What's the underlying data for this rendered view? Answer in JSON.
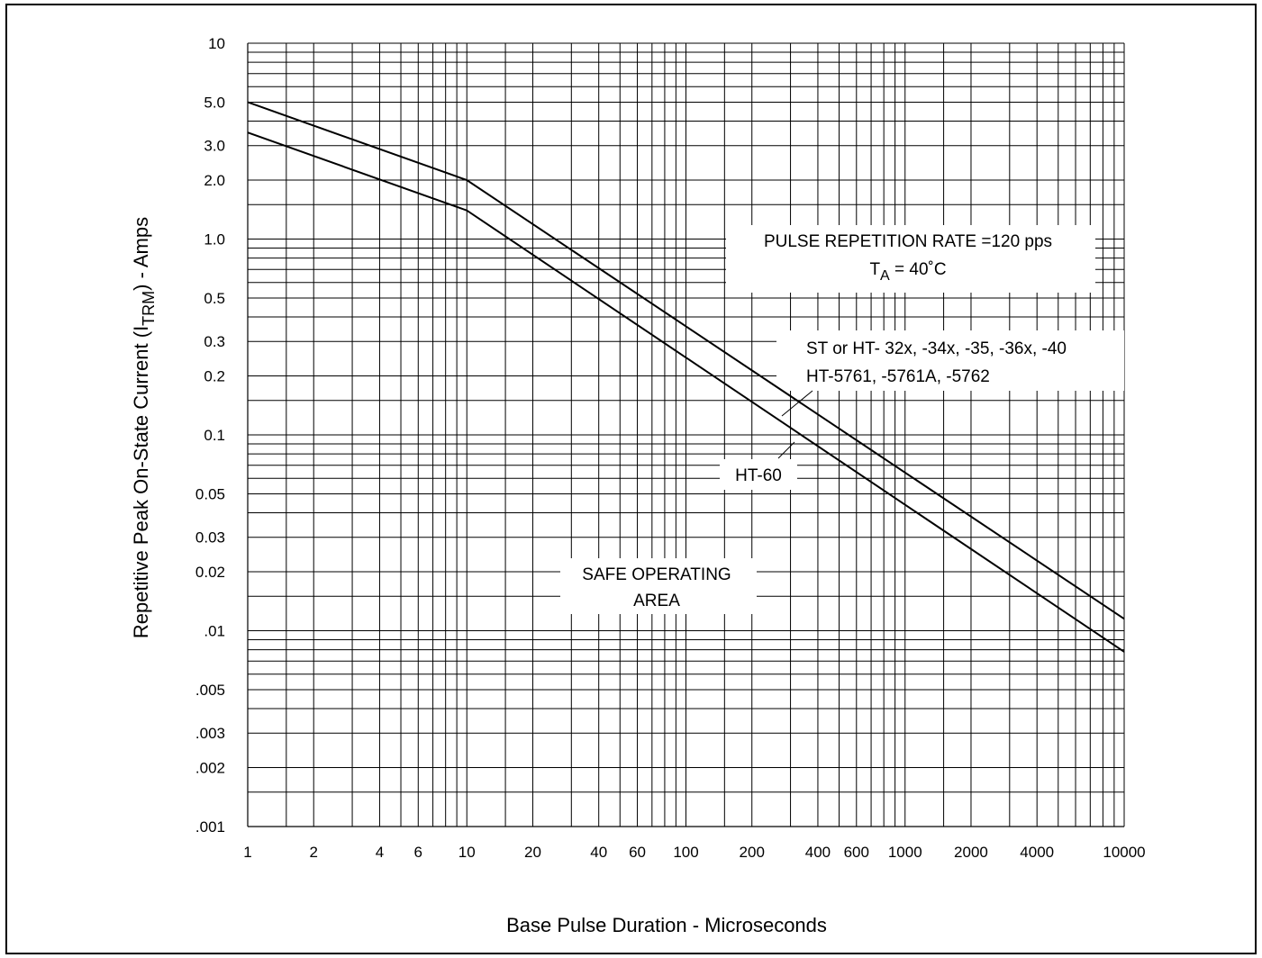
{
  "chart_data": {
    "type": "line",
    "xscale": "log",
    "yscale": "log",
    "xlim": [
      1,
      10000
    ],
    "ylim": [
      0.001,
      10
    ],
    "grid": true,
    "xlabel": "Base Pulse Duration - Microseconds",
    "ylabel_parts": {
      "prefix": "Repetitive Peak On-State Current (I",
      "subscript": "TRM",
      "suffix": ") - Amps"
    },
    "x_tick_labels": [
      {
        "v": 1,
        "t": "1"
      },
      {
        "v": 2,
        "t": "2"
      },
      {
        "v": 4,
        "t": "4"
      },
      {
        "v": 6,
        "t": "6"
      },
      {
        "v": 10,
        "t": "10"
      },
      {
        "v": 20,
        "t": "20"
      },
      {
        "v": 40,
        "t": "40"
      },
      {
        "v": 60,
        "t": "60"
      },
      {
        "v": 100,
        "t": "100"
      },
      {
        "v": 200,
        "t": "200"
      },
      {
        "v": 400,
        "t": "400"
      },
      {
        "v": 600,
        "t": "600"
      },
      {
        "v": 1000,
        "t": "1000"
      },
      {
        "v": 2000,
        "t": "2000"
      },
      {
        "v": 4000,
        "t": "4000"
      },
      {
        "v": 10000,
        "t": "10000"
      }
    ],
    "y_tick_labels": [
      {
        "v": 10,
        "t": "10"
      },
      {
        "v": 5,
        "t": "5.0"
      },
      {
        "v": 3,
        "t": "3.0"
      },
      {
        "v": 2,
        "t": "2.0"
      },
      {
        "v": 1,
        "t": "1.0"
      },
      {
        "v": 0.5,
        "t": "0.5"
      },
      {
        "v": 0.3,
        "t": "0.3"
      },
      {
        "v": 0.2,
        "t": "0.2"
      },
      {
        "v": 0.1,
        "t": "0.1"
      },
      {
        "v": 0.05,
        "t": "0.05"
      },
      {
        "v": 0.03,
        "t": "0.03"
      },
      {
        "v": 0.02,
        "t": "0.02"
      },
      {
        "v": 0.01,
        "t": ".01"
      },
      {
        "v": 0.005,
        "t": ".005"
      },
      {
        "v": 0.003,
        "t": ".003"
      },
      {
        "v": 0.002,
        "t": ".002"
      },
      {
        "v": 0.001,
        "t": ".001"
      }
    ],
    "series": [
      {
        "name": "ST or HT- 32x, -34x, -35, -36x, -40 / HT-5761, -5761A, -5762",
        "x": [
          1,
          10,
          10000
        ],
        "y": [
          5.0,
          2.0,
          0.0115
        ]
      },
      {
        "name": "HT-60",
        "x": [
          1,
          10,
          10000
        ],
        "y": [
          3.5,
          1.4,
          0.0078
        ]
      }
    ],
    "annotations": {
      "rate_line1": "PULSE REPETITION RATE =120 pps",
      "temp_prefix": "T",
      "temp_subscript": "A",
      "temp_suffix": " = 40˚C",
      "upper_label_line1": "ST or HT- 32x, -34x, -35, -36x, -40",
      "upper_label_line2": "HT-5761, -5761A, -5762",
      "lower_label": "HT-60",
      "area_line1": "SAFE OPERATING",
      "area_line2": "AREA"
    }
  }
}
